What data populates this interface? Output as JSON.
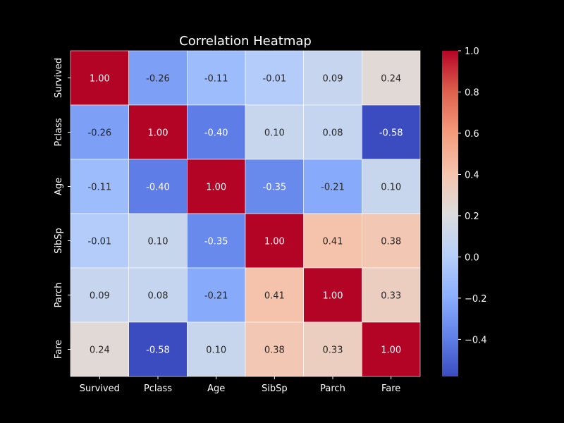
{
  "chart_data": {
    "type": "heatmap",
    "title": "Correlation Heatmap",
    "xlabel": "",
    "ylabel": "",
    "categories": [
      "Survived",
      "Pclass",
      "Age",
      "SibSp",
      "Parch",
      "Fare"
    ],
    "values": [
      [
        1.0,
        -0.26,
        -0.11,
        -0.01,
        0.09,
        0.24
      ],
      [
        -0.26,
        1.0,
        -0.4,
        0.1,
        0.08,
        -0.58
      ],
      [
        -0.11,
        -0.4,
        1.0,
        -0.35,
        -0.21,
        0.1
      ],
      [
        -0.01,
        0.1,
        -0.35,
        1.0,
        0.41,
        0.38
      ],
      [
        0.09,
        0.08,
        -0.21,
        0.41,
        1.0,
        0.33
      ],
      [
        0.24,
        -0.58,
        0.1,
        0.38,
        0.33,
        1.0
      ]
    ],
    "value_labels": [
      [
        "1.00",
        "-0.26",
        "-0.11",
        "-0.01",
        "0.09",
        "0.24"
      ],
      [
        "-0.26",
        "1.00",
        "-0.40",
        "0.10",
        "0.08",
        "-0.58"
      ],
      [
        "-0.11",
        "-0.40",
        "1.00",
        "-0.35",
        "-0.21",
        "0.10"
      ],
      [
        "-0.01",
        "0.10",
        "-0.35",
        "1.00",
        "0.41",
        "0.38"
      ],
      [
        "0.09",
        "0.08",
        "-0.21",
        "0.41",
        "1.00",
        "0.33"
      ],
      [
        "0.24",
        "-0.58",
        "0.10",
        "0.38",
        "0.33",
        "1.00"
      ]
    ],
    "colormap": "coolwarm",
    "color_range": [
      -0.58,
      1.0
    ],
    "colorbar_ticks": [
      1.0,
      0.8,
      0.6,
      0.4,
      0.2,
      0.0,
      -0.2,
      -0.4
    ],
    "colorbar_tick_labels": [
      "1.0",
      "0.8",
      "0.6",
      "0.4",
      "0.2",
      "0.0",
      "−0.2",
      "−0.4"
    ],
    "cell_border_color": "#ffffff",
    "text_color": "#ffffff",
    "annotation_dark_color": "#262626",
    "annotation_light_color": "#ffffff",
    "background_color": "#000000"
  }
}
